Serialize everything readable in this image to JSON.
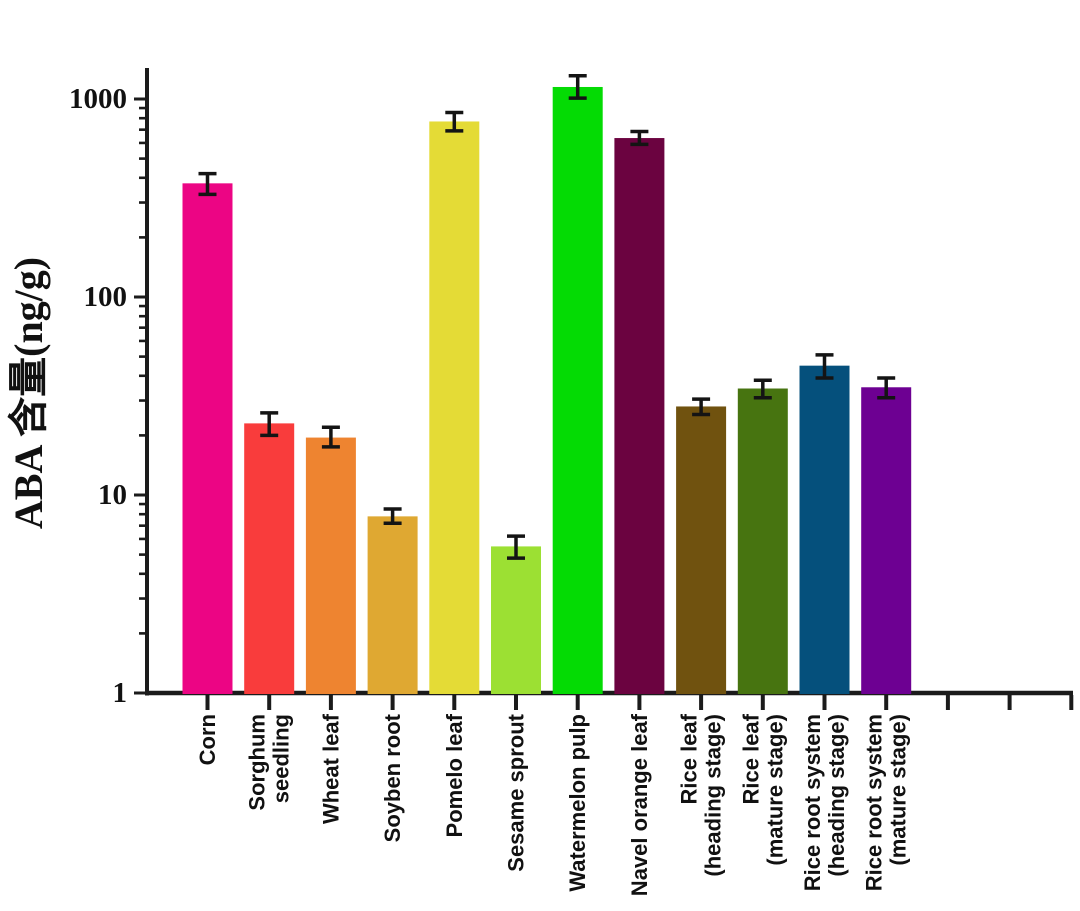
{
  "page": {
    "background": "#ffffff"
  },
  "chart_data": {
    "type": "bar",
    "title": "",
    "xlabel": "",
    "ylabel": "ABA 含量(ng/g)",
    "legend_position": "none",
    "grid": false,
    "y_axis": {
      "scale": "log",
      "tick_labels": [
        "1",
        "10",
        "100",
        "1000"
      ],
      "range": [
        1,
        1430
      ]
    },
    "categories": [
      "Corn",
      "Sorghum seedling",
      "Wheat leaf",
      "Soyben root",
      "Pomelo leaf",
      "Sesame sprout",
      "Watermelon pulp",
      "Navel orange leaf",
      "Rice leaf (heading stage)",
      "Rice leaf (mature stage)",
      "Rice root system (heading stage)",
      "Rice root system (mature stage)"
    ],
    "category_label_lines": [
      [
        "Corn"
      ],
      [
        "Sorghum",
        "seedling"
      ],
      [
        "Wheat leaf"
      ],
      [
        "Soyben root"
      ],
      [
        "Pomelo leaf"
      ],
      [
        "Sesame sprout"
      ],
      [
        "Watermelon pulp"
      ],
      [
        "Navel orange leaf"
      ],
      [
        "Rice leaf",
        "(heading stage)"
      ],
      [
        "Rice leaf",
        "(mature stage)"
      ],
      [
        "Rice root system",
        "(heading stage)"
      ],
      [
        "Rice root system",
        "(mature stage)"
      ]
    ],
    "values": [
      375,
      23,
      19.5,
      7.8,
      770,
      5.5,
      1150,
      635,
      28,
      34.5,
      45,
      35
    ],
    "error_low": [
      330,
      20,
      17.5,
      7.2,
      690,
      4.8,
      1010,
      590,
      25.5,
      31,
      39,
      31
    ],
    "error_high": [
      420,
      26,
      22.0,
      8.5,
      855,
      6.2,
      1310,
      685,
      30.5,
      38,
      51,
      39
    ],
    "bar_colors": [
      "#EC0584",
      "#F93C3C",
      "#EE8430",
      "#DFA832",
      "#E4DB36",
      "#9CE033",
      "#04DB04",
      "#6B0340",
      "#70520F",
      "#477410",
      "#05507C",
      "#6D0092"
    ],
    "error_bar_color": "#141414",
    "axis_color": "#1b1b1b",
    "empty_trailing_ticks": 3
  }
}
